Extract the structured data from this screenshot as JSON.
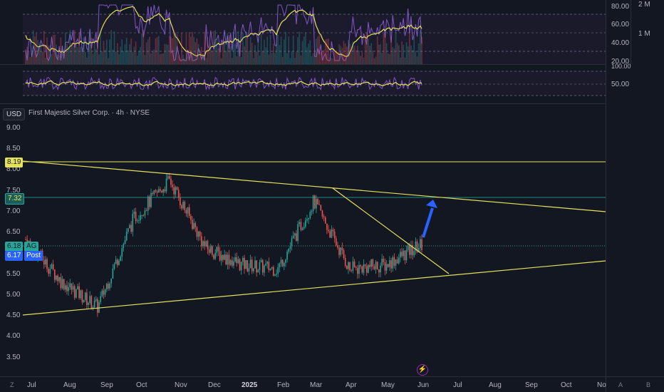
{
  "header": {
    "currency": "USD",
    "title": "First Majestic Silver Corp. · 4h · NYSE"
  },
  "price_axis": [
    "9.00",
    "8.50",
    "8.00",
    "7.50",
    "7.00",
    "6.50",
    "6.00",
    "5.50",
    "5.00",
    "4.50",
    "4.00",
    "3.50"
  ],
  "price_tags": {
    "tag_819": "8.19",
    "tag_732": "7.32",
    "tag_618_value": "6.18",
    "tag_618_symbol": "AG",
    "tag_617_value": "6.17",
    "tag_617_label": "Post"
  },
  "rsi_axis": [
    "80.00",
    "60.00",
    "40.00",
    "20.00"
  ],
  "volume_axis": [
    "2 M",
    "1 M"
  ],
  "osc_axis": [
    "100.00",
    "50.00"
  ],
  "time_axis": [
    "Jul",
    "Aug",
    "Sep",
    "Oct",
    "Nov",
    "Dec",
    "2025",
    "Feb",
    "Mar",
    "Apr",
    "May",
    "Jun",
    "Jul",
    "Aug",
    "Sep",
    "Oct",
    "No"
  ],
  "corner_labels": {
    "left": "Z",
    "right_a": "A",
    "right_b": "B"
  },
  "colors": {
    "background": "#131722",
    "up_candle": "#26a69a",
    "down_candle": "#ef5350",
    "trendline": "#e6e15a",
    "arrow": "#2962ff",
    "rsi": "#7e57c2",
    "rsi_ma": "#e6e15a"
  },
  "chart_data": {
    "type": "line",
    "symbol": "AG",
    "title": "First Majestic Silver Corp. · 4h · NYSE",
    "ylim": [
      3.2,
      9.3
    ],
    "x": [
      "Jul",
      "Aug",
      "Sep",
      "Oct",
      "Nov",
      "Dec",
      "2025",
      "Feb",
      "Mar",
      "Apr",
      "May",
      "Jun"
    ],
    "series": [
      {
        "values": [
          6.3,
          5.3,
          4.7,
          6.8,
          7.7,
          6.1,
          5.7,
          5.6,
          7.2,
          5.6,
          5.7,
          6.18
        ]
      }
    ],
    "last_price": 6.18,
    "post_market": 6.17
  }
}
